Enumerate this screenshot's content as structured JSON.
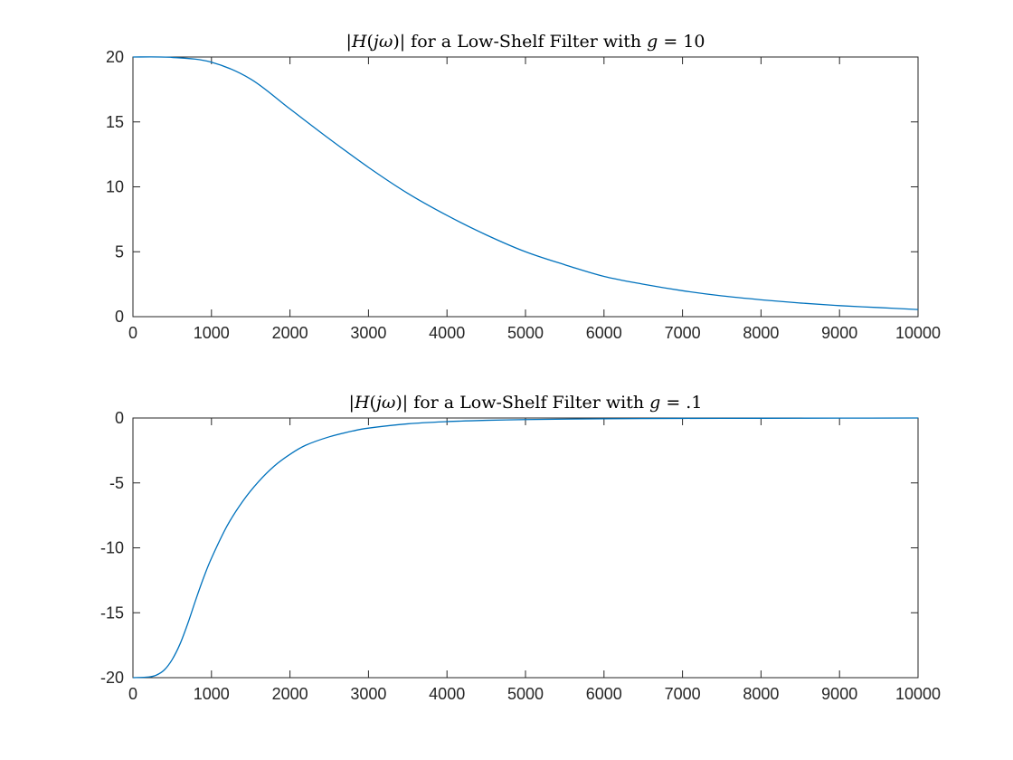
{
  "chart_data": [
    {
      "type": "line",
      "title_parts": [
        {
          "text": "|",
          "italic": false
        },
        {
          "text": "H",
          "italic": true
        },
        {
          "text": "(",
          "italic": false
        },
        {
          "text": "jω",
          "italic": true
        },
        {
          "text": ")| for a Low-Shelf Filter with ",
          "italic": false
        },
        {
          "text": "g",
          "italic": true
        },
        {
          "text": " = 10",
          "italic": false
        }
      ],
      "xlim": [
        0,
        10000
      ],
      "ylim": [
        0,
        20
      ],
      "xticks": [
        0,
        1000,
        2000,
        3000,
        4000,
        5000,
        6000,
        7000,
        8000,
        9000,
        10000
      ],
      "yticks": [
        0,
        5,
        10,
        15,
        20
      ],
      "xtick_labels": [
        "0",
        "1000",
        "2000",
        "3000",
        "4000",
        "5000",
        "6000",
        "7000",
        "8000",
        "9000",
        "10000"
      ],
      "ytick_labels": [
        "0",
        "5",
        "10",
        "15",
        "20"
      ],
      "grid": false,
      "line_color": "#0072bd",
      "series": [
        {
          "x": [
            0,
            500,
            1000,
            1500,
            2000,
            2500,
            3000,
            3500,
            4000,
            4500,
            5000,
            5500,
            6000,
            6500,
            7000,
            7500,
            8000,
            8500,
            9000,
            9500,
            10000
          ],
          "y": [
            20,
            19.97,
            19.6,
            18.3,
            16.0,
            13.7,
            11.5,
            9.5,
            7.8,
            6.3,
            5.0,
            4.0,
            3.1,
            2.5,
            2.0,
            1.6,
            1.3,
            1.05,
            0.85,
            0.7,
            0.55
          ]
        }
      ]
    },
    {
      "type": "line",
      "title_parts": [
        {
          "text": "|",
          "italic": false
        },
        {
          "text": "H",
          "italic": true
        },
        {
          "text": "(",
          "italic": false
        },
        {
          "text": "jω",
          "italic": true
        },
        {
          "text": ")| for a Low-Shelf Filter with ",
          "italic": false
        },
        {
          "text": "g",
          "italic": true
        },
        {
          "text": " = .1",
          "italic": false
        }
      ],
      "xlim": [
        0,
        10000
      ],
      "ylim": [
        -20,
        0
      ],
      "xticks": [
        0,
        1000,
        2000,
        3000,
        4000,
        5000,
        6000,
        7000,
        8000,
        9000,
        10000
      ],
      "yticks": [
        -20,
        -15,
        -10,
        -5,
        0
      ],
      "xtick_labels": [
        "0",
        "1000",
        "2000",
        "3000",
        "4000",
        "5000",
        "6000",
        "7000",
        "8000",
        "9000",
        "10000"
      ],
      "ytick_labels": [
        "-20",
        "-15",
        "-10",
        "-5",
        "0"
      ],
      "grid": false,
      "line_color": "#0072bd",
      "series": [
        {
          "x": [
            0,
            200,
            300,
            400,
            500,
            600,
            700,
            800,
            900,
            1000,
            1200,
            1400,
            1600,
            1800,
            2000,
            2200,
            2500,
            2800,
            3000,
            3500,
            4000,
            4500,
            5000,
            6000,
            7000,
            8000,
            9000,
            10000
          ],
          "y": [
            -20,
            -19.95,
            -19.8,
            -19.4,
            -18.6,
            -17.4,
            -15.8,
            -14.0,
            -12.3,
            -10.8,
            -8.3,
            -6.4,
            -4.9,
            -3.7,
            -2.8,
            -2.1,
            -1.45,
            -1.0,
            -0.78,
            -0.45,
            -0.28,
            -0.18,
            -0.12,
            -0.06,
            -0.03,
            -0.02,
            -0.01,
            0
          ]
        }
      ]
    }
  ]
}
